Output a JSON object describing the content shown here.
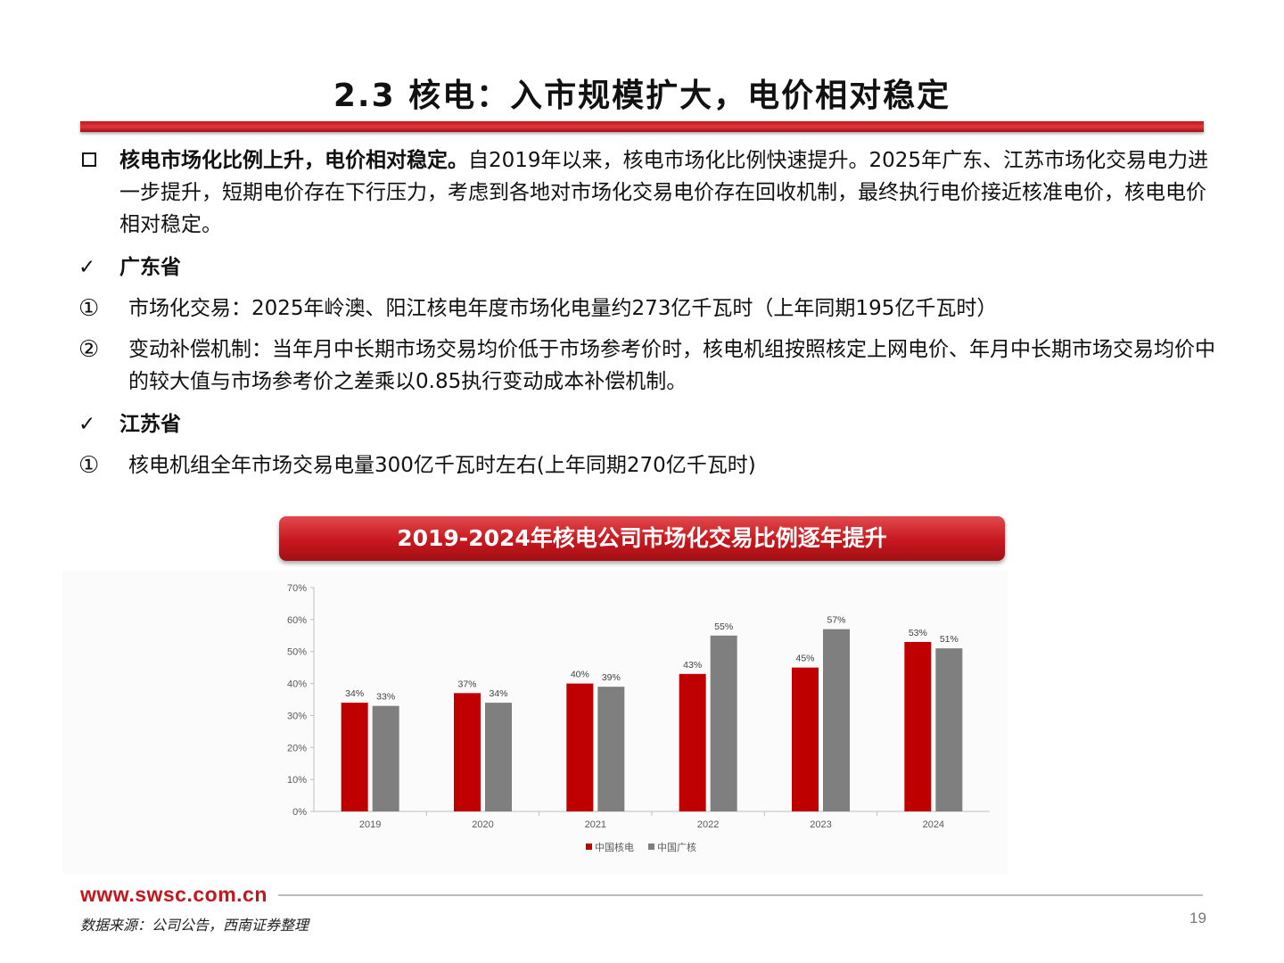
{
  "title": "2.3 核电：入市规模扩大，电价相对稳定",
  "summary": {
    "lead_bold": "核电市场化比例上升，电价相对稳定。",
    "text": "自2019年以来，核电市场化比例快速提升。2025年广东、江苏市场化交易电力进一步提升，短期电价存在下行压力，考虑到各地对市场化交易电价存在回收机制，最终执行电价接近核准电价，核电电价相对稳定。"
  },
  "guangdong": {
    "heading": "广东省",
    "check_mark": "✓",
    "items": [
      {
        "mark": "①",
        "text": "市场化交易：2025年岭澳、阳江核电年度市场化电量约273亿千瓦时（上年同期195亿千瓦时）"
      },
      {
        "mark": "②",
        "text": "变动补偿机制：当年月中长期市场交易均价低于市场参考价时，核电机组按照核定上网电价、年月中长期市场交易均价中的较大值与市场参考价之差乘以0.85执行变动成本补偿机制。"
      }
    ]
  },
  "jiangsu": {
    "heading": "江苏省",
    "check_mark": "✓",
    "items": [
      {
        "mark": "①",
        "text": "核电机组全年市场交易电量300亿千瓦时左右(上年同期270亿千瓦时)"
      }
    ]
  },
  "chart_banner": "2019-2024年核电公司市场化交易比例逐年提升",
  "chart_data": {
    "type": "bar",
    "title": "2019-2024年核电公司市场化交易比例逐年提升",
    "categories": [
      "2019",
      "2020",
      "2021",
      "2022",
      "2023",
      "2024"
    ],
    "series": [
      {
        "name": "中国核电",
        "values": [
          34,
          37,
          40,
          43,
          45,
          53
        ],
        "labels": [
          "34%",
          "37%",
          "40%",
          "43%",
          "45%",
          "53%"
        ],
        "color": "#c00000"
      },
      {
        "name": "中国广核",
        "values": [
          33,
          34,
          39,
          55,
          57,
          51
        ],
        "labels": [
          "33%",
          "34%",
          "39%",
          "55%",
          "57%",
          "51%"
        ],
        "color": "#7f7f7f"
      }
    ],
    "ylim": [
      0,
      70
    ],
    "yticks": [
      "0%",
      "10%",
      "20%",
      "30%",
      "40%",
      "50%",
      "60%",
      "70%"
    ],
    "grid": false,
    "legend_position": "bottom"
  },
  "footer": {
    "url": "www.swsc.com.cn",
    "source": "数据来源：公司公告，西南证券整理",
    "page_number": "19"
  },
  "colors": {
    "brand_red": "#c4161c"
  }
}
